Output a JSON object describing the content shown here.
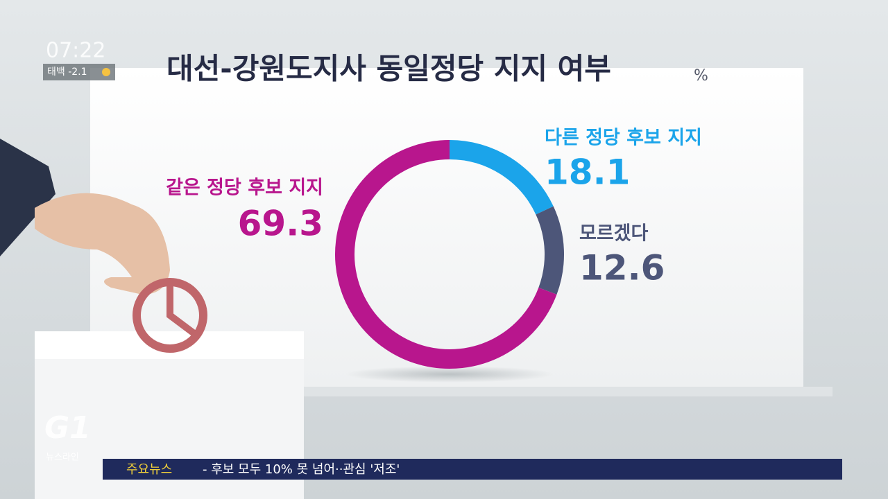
{
  "chart_data": {
    "type": "donut",
    "title": "대선-강원도지사 동일정당 지지 여부",
    "unit": "%",
    "categories": [
      "다른 정당 후보 지지",
      "모르겠다",
      "같은 정당 후보 지지"
    ],
    "values": [
      18.1,
      12.6,
      69.3
    ],
    "colors": [
      "#1ba4ea",
      "#4d5679",
      "#b8168d"
    ]
  },
  "overlay": {
    "time": "07:22",
    "weather": "태백 -2.1",
    "logo": "G1",
    "program": "뉴스라인",
    "ticker_label": "주요뉴스",
    "ticker_text": "- 후보 모두 10% 못 넘어··관심 '저조'"
  }
}
